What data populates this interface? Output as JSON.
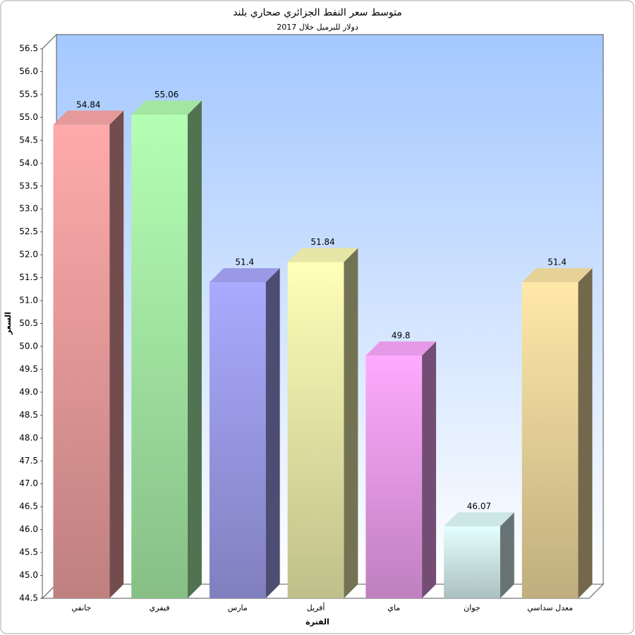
{
  "chart_data": {
    "type": "bar3d",
    "title": "متوسط سعر النفط الجزائري صحاري بلند",
    "subtitle": "دولار للبرميل خلال 2017",
    "y_label": "السعر",
    "x_label": "الفترة",
    "categories": [
      "جانفي",
      "فيفري",
      "مارس",
      "أفريل",
      "ماي",
      "جوان",
      "معدل سداسي"
    ],
    "values": [
      54.84,
      55.06,
      51.4,
      51.84,
      49.8,
      46.07,
      51.4
    ],
    "colors": [
      "#ffaaaa",
      "#b4ffb4",
      "#aaaaff",
      "#ffffb8",
      "#ffaaff",
      "#e4ffff",
      "#ffe8a8"
    ],
    "ylim": [
      44.5,
      56.5
    ],
    "yticks": [
      44.5,
      {
        "value": 45,
        "label": "45.0"
      },
      45.5,
      {
        "value": 46,
        "label": "46.0"
      },
      46.5,
      {
        "value": 47,
        "label": "47.0"
      },
      47.5,
      {
        "value": 48,
        "label": "48.0"
      },
      48.5,
      {
        "value": 49,
        "label": "49.0"
      },
      49.5,
      {
        "value": 50,
        "label": "50.0"
      },
      50.5,
      {
        "value": 51,
        "label": "51.0"
      },
      51.5,
      {
        "value": 52,
        "label": "52.0"
      },
      52.5,
      {
        "value": 53,
        "label": "53.0"
      },
      53.5,
      {
        "value": 54,
        "label": "54.0"
      },
      54.5,
      {
        "value": 55,
        "label": "55.0"
      },
      55.5,
      {
        "value": 56,
        "label": "56.0"
      },
      56.5
    ]
  }
}
